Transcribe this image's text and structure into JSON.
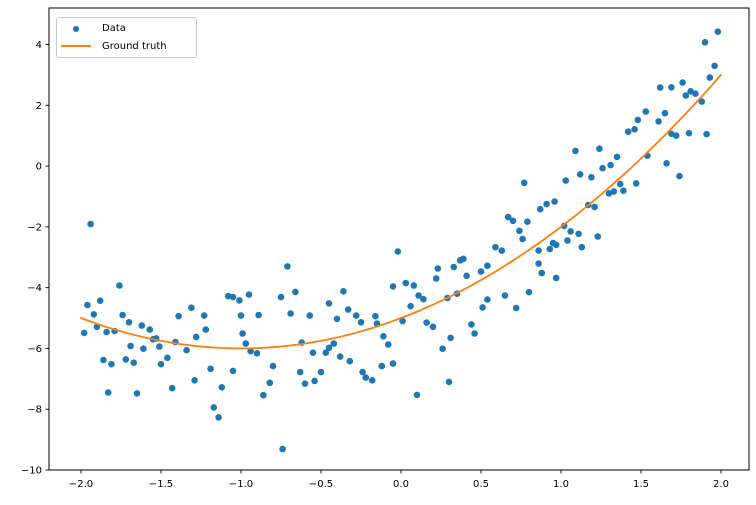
{
  "chart_data": {
    "type": "scatter",
    "title": "",
    "xlabel": "",
    "ylabel": "",
    "grid": false,
    "legend_position": "upper left",
    "xlim": [
      -2.2,
      2.175
    ],
    "ylim": [
      -10.0,
      5.2
    ],
    "x_ticks": [
      -2.0,
      -1.5,
      -1.0,
      -0.5,
      0.0,
      0.5,
      1.0,
      1.5,
      2.0
    ],
    "x_tick_labels": [
      "−2.0",
      "−1.5",
      "−1.0",
      "−0.5",
      "0.0",
      "0.5",
      "1.0",
      "1.5",
      "2.0"
    ],
    "y_ticks": [
      4,
      2,
      0,
      -2,
      -4,
      -6,
      -8,
      -10
    ],
    "y_tick_labels": [
      "4",
      "2",
      "0",
      "−2",
      "−4",
      "−6",
      "−8",
      "−10"
    ],
    "legend": [
      {
        "label": "Data",
        "marker": "dot",
        "color": "#1f77b4"
      },
      {
        "label": "Ground truth",
        "marker": "line",
        "color": "#ff7f0e"
      }
    ],
    "series": [
      {
        "name": "Data",
        "type": "scatter",
        "color": "#1f77b4",
        "marker_radius": 3.3,
        "points": [
          [
            -1.94,
            -1.91
          ],
          [
            -1.76,
            -3.93
          ],
          [
            -1.96,
            -4.57
          ],
          [
            -1.88,
            -4.43
          ],
          [
            -1.92,
            -4.88
          ],
          [
            -1.74,
            -4.9
          ],
          [
            -1.39,
            -4.94
          ],
          [
            -1.31,
            -4.66
          ],
          [
            -1.23,
            -4.92
          ],
          [
            -1.98,
            -5.49
          ],
          [
            -1.9,
            -5.29
          ],
          [
            -1.84,
            -5.46
          ],
          [
            -1.79,
            -5.43
          ],
          [
            -1.7,
            -5.14
          ],
          [
            -1.62,
            -5.25
          ],
          [
            -1.57,
            -5.38
          ],
          [
            -1.55,
            -5.7
          ],
          [
            -1.53,
            -5.67
          ],
          [
            -1.51,
            -5.94
          ],
          [
            -1.69,
            -5.92
          ],
          [
            -1.61,
            -6.01
          ],
          [
            -1.86,
            -6.38
          ],
          [
            -1.81,
            -6.52
          ],
          [
            -1.72,
            -6.36
          ],
          [
            -1.67,
            -6.47
          ],
          [
            -1.5,
            -6.52
          ],
          [
            -1.46,
            -6.31
          ],
          [
            -1.41,
            -5.79
          ],
          [
            -1.34,
            -6.06
          ],
          [
            -1.28,
            -5.62
          ],
          [
            -1.22,
            -5.38
          ],
          [
            -1.19,
            -6.67
          ],
          [
            -1.29,
            -7.05
          ],
          [
            -1.43,
            -7.31
          ],
          [
            -1.65,
            -7.48
          ],
          [
            -1.83,
            -7.45
          ],
          [
            -1.17,
            -7.94
          ],
          [
            -1.14,
            -8.27
          ],
          [
            -0.99,
            -5.51
          ],
          [
            -0.97,
            -5.84
          ],
          [
            -0.94,
            -6.09
          ],
          [
            -0.9,
            -6.16
          ],
          [
            -1.05,
            -6.74
          ],
          [
            -0.82,
            -7.13
          ],
          [
            -0.86,
            -7.54
          ],
          [
            -0.8,
            -6.58
          ],
          [
            -0.63,
            -6.78
          ],
          [
            -0.6,
            -7.16
          ],
          [
            -0.62,
            -5.81
          ],
          [
            -0.55,
            -6.14
          ],
          [
            -0.54,
            -7.07
          ],
          [
            -0.5,
            -6.78
          ],
          [
            -0.47,
            -6.14
          ],
          [
            -0.45,
            -5.98
          ],
          [
            -0.42,
            -5.84
          ],
          [
            -0.38,
            -6.27
          ],
          [
            -0.32,
            -6.42
          ],
          [
            -0.25,
            -5.14
          ],
          [
            -0.15,
            -5.18
          ],
          [
            -0.11,
            -5.6
          ],
          [
            -0.08,
            -5.87
          ],
          [
            -0.12,
            -6.58
          ],
          [
            -0.05,
            -6.5
          ],
          [
            -0.74,
            -9.31
          ],
          [
            -1.12,
            -7.28
          ],
          [
            -0.24,
            -6.78
          ],
          [
            -0.22,
            -6.96
          ],
          [
            -0.18,
            -7.05
          ],
          [
            0.16,
            -5.15
          ],
          [
            0.2,
            -5.29
          ],
          [
            0.31,
            -5.65
          ],
          [
            0.26,
            -6.01
          ],
          [
            0.44,
            -5.21
          ],
          [
            0.46,
            -5.51
          ],
          [
            0.3,
            -7.1
          ],
          [
            0.1,
            -7.53
          ],
          [
            0.01,
            -5.1
          ],
          [
            0.77,
            -0.55
          ],
          [
            1.03,
            -0.48
          ],
          [
            1.12,
            -0.27
          ],
          [
            0.87,
            -1.42
          ],
          [
            0.91,
            -1.25
          ],
          [
            0.96,
            -1.17
          ],
          [
            0.67,
            -1.68
          ],
          [
            0.7,
            -1.8
          ],
          [
            0.79,
            -1.83
          ],
          [
            0.74,
            -2.13
          ],
          [
            1.02,
            -1.97
          ],
          [
            1.06,
            -2.15
          ],
          [
            1.11,
            -2.23
          ],
          [
            0.76,
            -2.4
          ],
          [
            0.95,
            -2.53
          ],
          [
            0.97,
            -2.59
          ],
          [
            1.04,
            -2.45
          ],
          [
            0.59,
            -2.67
          ],
          [
            0.63,
            -2.78
          ],
          [
            0.86,
            -2.78
          ],
          [
            0.93,
            -2.73
          ],
          [
            0.86,
            -3.21
          ],
          [
            0.88,
            -3.52
          ],
          [
            0.23,
            -3.37
          ],
          [
            0.33,
            -3.32
          ],
          [
            0.37,
            -3.1
          ],
          [
            0.39,
            -3.05
          ],
          [
            0.41,
            -3.61
          ],
          [
            0.5,
            -3.47
          ],
          [
            0.54,
            -3.28
          ],
          [
            0.22,
            -3.7
          ],
          [
            0.11,
            -4.26
          ],
          [
            0.14,
            -4.38
          ],
          [
            -0.05,
            -3.96
          ],
          [
            0.03,
            -3.85
          ],
          [
            0.08,
            -3.93
          ],
          [
            0.29,
            -4.34
          ],
          [
            0.35,
            -4.2
          ],
          [
            0.54,
            -4.39
          ],
          [
            0.65,
            -4.26
          ],
          [
            0.97,
            -3.68
          ],
          [
            0.51,
            -4.65
          ],
          [
            0.72,
            -4.67
          ],
          [
            0.8,
            -4.15
          ],
          [
            1.13,
            -2.67
          ],
          [
            0.06,
            -4.61
          ],
          [
            1.19,
            -0.37
          ],
          [
            1.26,
            -0.07
          ],
          [
            1.31,
            0.03
          ],
          [
            1.37,
            -0.59
          ],
          [
            1.39,
            -0.81
          ],
          [
            1.33,
            -0.84
          ],
          [
            1.3,
            -0.9
          ],
          [
            1.47,
            -0.57
          ],
          [
            1.66,
            0.09
          ],
          [
            1.74,
            -0.33
          ],
          [
            1.17,
            -1.28
          ],
          [
            1.21,
            -1.35
          ],
          [
            1.23,
            -2.32
          ],
          [
            1.98,
            4.42
          ],
          [
            1.9,
            4.07
          ],
          [
            1.96,
            3.3
          ],
          [
            1.93,
            2.91
          ],
          [
            1.84,
            2.38
          ],
          [
            1.81,
            2.46
          ],
          [
            1.78,
            2.32
          ],
          [
            1.88,
            2.12
          ],
          [
            1.69,
            2.59
          ],
          [
            1.76,
            2.75
          ],
          [
            1.62,
            2.58
          ],
          [
            1.53,
            1.79
          ],
          [
            1.65,
            1.74
          ],
          [
            1.61,
            1.47
          ],
          [
            1.48,
            1.52
          ],
          [
            1.46,
            1.21
          ],
          [
            1.42,
            1.13
          ],
          [
            1.69,
            1.06
          ],
          [
            1.72,
            1.0
          ],
          [
            1.8,
            1.08
          ],
          [
            1.91,
            1.05
          ],
          [
            1.24,
            0.57
          ],
          [
            1.35,
            0.3
          ],
          [
            1.54,
            0.34
          ],
          [
            1.09,
            0.5
          ],
          [
            -0.02,
            -2.81
          ],
          [
            -0.71,
            -3.3
          ],
          [
            -0.66,
            -4.14
          ],
          [
            -0.36,
            -4.12
          ],
          [
            -1.08,
            -4.28
          ],
          [
            -1.05,
            -4.31
          ],
          [
            -1.01,
            -4.42
          ],
          [
            -0.95,
            -4.23
          ],
          [
            -0.75,
            -4.31
          ],
          [
            -0.45,
            -4.52
          ],
          [
            -0.33,
            -4.72
          ],
          [
            -1.0,
            -4.92
          ],
          [
            -0.89,
            -4.9
          ],
          [
            -0.69,
            -4.85
          ],
          [
            -0.57,
            -4.92
          ],
          [
            -0.4,
            -5.03
          ],
          [
            -0.28,
            -4.92
          ],
          [
            -0.16,
            -4.94
          ]
        ]
      }
    ],
    "ground_truth": {
      "name": "Ground truth",
      "type": "line",
      "color": "#ff7f0e",
      "line_width": 1.8,
      "formula": "y = x^2 + 2x - 5",
      "poly_coeffs": [
        -5,
        2,
        1
      ],
      "x_range": [
        -2.0,
        2.0
      ]
    },
    "axis_color": "#000000",
    "background_color": "#ffffff"
  }
}
